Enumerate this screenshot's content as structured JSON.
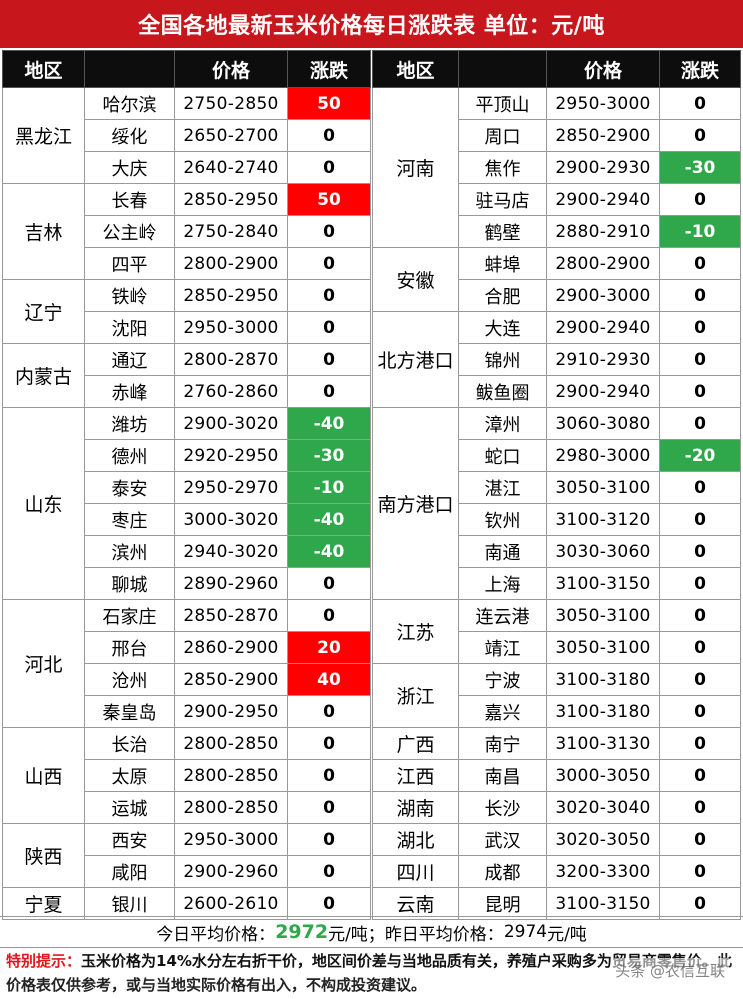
{
  "title": "全国各地最新玉米价格每日涨跌表   单位：元/吨",
  "headers": {
    "region": "地区",
    "price": "价格",
    "change": "涨跌"
  },
  "colors": {
    "title_bg": "#c8161d",
    "header_bg": "#0d0d0d",
    "up": "#ff0000",
    "down": "#2ea84a",
    "notice": "#e0161d"
  },
  "left": [
    {
      "region": "黑龙江",
      "cities": [
        {
          "city": "哈尔滨",
          "price": "2750-2850",
          "change": "50"
        },
        {
          "city": "绥化",
          "price": "2650-2700",
          "change": "0"
        },
        {
          "city": "大庆",
          "price": "2640-2740",
          "change": "0"
        }
      ]
    },
    {
      "region": "吉林",
      "cities": [
        {
          "city": "长春",
          "price": "2850-2950",
          "change": "50"
        },
        {
          "city": "公主岭",
          "price": "2750-2840",
          "change": "0"
        },
        {
          "city": "四平",
          "price": "2800-2900",
          "change": "0"
        }
      ]
    },
    {
      "region": "辽宁",
      "cities": [
        {
          "city": "铁岭",
          "price": "2850-2950",
          "change": "0"
        },
        {
          "city": "沈阳",
          "price": "2950-3000",
          "change": "0"
        }
      ]
    },
    {
      "region": "内蒙古",
      "cities": [
        {
          "city": "通辽",
          "price": "2800-2870",
          "change": "0"
        },
        {
          "city": "赤峰",
          "price": "2760-2860",
          "change": "0"
        }
      ]
    },
    {
      "region": "山东",
      "cities": [
        {
          "city": "潍坊",
          "price": "2900-3020",
          "change": "-40"
        },
        {
          "city": "德州",
          "price": "2920-2950",
          "change": "-30"
        },
        {
          "city": "泰安",
          "price": "2950-2970",
          "change": "-10"
        },
        {
          "city": "枣庄",
          "price": "3000-3020",
          "change": "-40"
        },
        {
          "city": "滨州",
          "price": "2940-3020",
          "change": "-40"
        },
        {
          "city": "聊城",
          "price": "2890-2960",
          "change": "0"
        }
      ]
    },
    {
      "region": "河北",
      "cities": [
        {
          "city": "石家庄",
          "price": "2850-2870",
          "change": "0"
        },
        {
          "city": "邢台",
          "price": "2860-2900",
          "change": "20"
        },
        {
          "city": "沧州",
          "price": "2850-2900",
          "change": "40"
        },
        {
          "city": "秦皇岛",
          "price": "2900-2950",
          "change": "0"
        }
      ]
    },
    {
      "region": "山西",
      "cities": [
        {
          "city": "长治",
          "price": "2800-2850",
          "change": "0"
        },
        {
          "city": "太原",
          "price": "2800-2850",
          "change": "0"
        },
        {
          "city": "运城",
          "price": "2800-2850",
          "change": "0"
        }
      ]
    },
    {
      "region": "陕西",
      "cities": [
        {
          "city": "西安",
          "price": "2950-3000",
          "change": "0"
        },
        {
          "city": "咸阳",
          "price": "2900-2960",
          "change": "0"
        }
      ]
    },
    {
      "region": "宁夏",
      "cities": [
        {
          "city": "银川",
          "price": "2600-2610",
          "change": "0"
        }
      ]
    }
  ],
  "right": [
    {
      "region": "河南",
      "cities": [
        {
          "city": "平顶山",
          "price": "2950-3000",
          "change": "0"
        },
        {
          "city": "周口",
          "price": "2850-2900",
          "change": "0"
        },
        {
          "city": "焦作",
          "price": "2900-2930",
          "change": "-30"
        },
        {
          "city": "驻马店",
          "price": "2900-2940",
          "change": "0"
        },
        {
          "city": "鹤壁",
          "price": "2880-2910",
          "change": "-10"
        }
      ]
    },
    {
      "region": "安徽",
      "cities": [
        {
          "city": "蚌埠",
          "price": "2800-2900",
          "change": "0"
        },
        {
          "city": "合肥",
          "price": "2900-3000",
          "change": "0"
        }
      ]
    },
    {
      "region": "北方港口",
      "cities": [
        {
          "city": "大连",
          "price": "2900-2940",
          "change": "0"
        },
        {
          "city": "锦州",
          "price": "2910-2930",
          "change": "0"
        },
        {
          "city": "鲅鱼圈",
          "price": "2900-2940",
          "change": "0"
        }
      ]
    },
    {
      "region": "南方港口",
      "cities": [
        {
          "city": "漳州",
          "price": "3060-3080",
          "change": "0"
        },
        {
          "city": "蛇口",
          "price": "2980-3000",
          "change": "-20"
        },
        {
          "city": "湛江",
          "price": "3050-3100",
          "change": "0"
        },
        {
          "city": "钦州",
          "price": "3100-3120",
          "change": "0"
        },
        {
          "city": "南通",
          "price": "3030-3060",
          "change": "0"
        },
        {
          "city": "上海",
          "price": "3100-3150",
          "change": "0"
        }
      ]
    },
    {
      "region": "江苏",
      "cities": [
        {
          "city": "连云港",
          "price": "3050-3100",
          "change": "0"
        },
        {
          "city": "靖江",
          "price": "3050-3100",
          "change": "0"
        }
      ]
    },
    {
      "region": "浙江",
      "cities": [
        {
          "city": "宁波",
          "price": "3100-3180",
          "change": "0"
        },
        {
          "city": "嘉兴",
          "price": "3100-3180",
          "change": "0"
        }
      ]
    },
    {
      "region": "广西",
      "cities": [
        {
          "city": "南宁",
          "price": "3100-3130",
          "change": "0"
        }
      ]
    },
    {
      "region": "江西",
      "cities": [
        {
          "city": "南昌",
          "price": "3000-3050",
          "change": "0"
        }
      ]
    },
    {
      "region": "湖南",
      "cities": [
        {
          "city": "长沙",
          "price": "3020-3040",
          "change": "0"
        }
      ]
    },
    {
      "region": "湖北",
      "cities": [
        {
          "city": "武汉",
          "price": "3020-3050",
          "change": "0"
        }
      ]
    },
    {
      "region": "四川",
      "cities": [
        {
          "city": "成都",
          "price": "3200-3300",
          "change": "0"
        }
      ]
    },
    {
      "region": "云南",
      "cities": [
        {
          "city": "昆明",
          "price": "3100-3150",
          "change": "0"
        }
      ]
    }
  ],
  "summary": {
    "today_label": "今日平均价格：",
    "today_value": "2972",
    "today_unit": "元/吨；",
    "yesterday_label": "昨日平均价格：",
    "yesterday_value": "2974",
    "yesterday_unit": "元/吨"
  },
  "notice": {
    "lead": "特别提示：",
    "body": "玉米价格为14%水分左右折干价，地区间价差与当地品质有关，养殖户采购多为贸易商零售价。",
    "disclaimer": "此价格表仅供参考，或与当地实际价格有出入，不构成投资建议。"
  },
  "watermark": "头条 @农信互联"
}
